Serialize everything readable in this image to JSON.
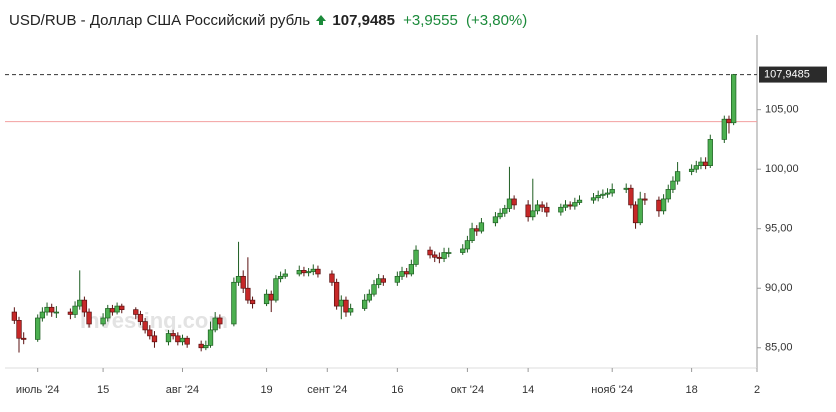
{
  "chart_data": {
    "type": "candlestick",
    "title": "USD/RUB - Доллар США Российский рубль",
    "last_price": {
      "value": 107.9485,
      "label": "107,9485"
    },
    "change": {
      "value": 3.9555,
      "label": "+3,9555"
    },
    "change_percent": {
      "value": 3.8,
      "label": "(+3,80%)"
    },
    "reference_line": 103.993,
    "watermark": "Investing.com",
    "up_color": "#4caf50",
    "down_color": "#c62828",
    "x": [
      "2024-06-26",
      "2024-06-27",
      "2024-06-28",
      "2024-07-01",
      "2024-07-02",
      "2024-07-03",
      "2024-07-04",
      "2024-07-05",
      "2024-07-08",
      "2024-07-09",
      "2024-07-10",
      "2024-07-11",
      "2024-07-12",
      "2024-07-15",
      "2024-07-16",
      "2024-07-17",
      "2024-07-18",
      "2024-07-19",
      "2024-07-22",
      "2024-07-23",
      "2024-07-24",
      "2024-07-25",
      "2024-07-26",
      "2024-07-29",
      "2024-07-30",
      "2024-07-31",
      "2024-08-01",
      "2024-08-02",
      "2024-08-05",
      "2024-08-06",
      "2024-08-07",
      "2024-08-08",
      "2024-08-09",
      "2024-08-12",
      "2024-08-13",
      "2024-08-14",
      "2024-08-15",
      "2024-08-16",
      "2024-08-19",
      "2024-08-20",
      "2024-08-21",
      "2024-08-22",
      "2024-08-23",
      "2024-08-26",
      "2024-08-27",
      "2024-08-28",
      "2024-08-29",
      "2024-08-30",
      "2024-09-02",
      "2024-09-03",
      "2024-09-04",
      "2024-09-05",
      "2024-09-06",
      "2024-09-09",
      "2024-09-10",
      "2024-09-11",
      "2024-09-12",
      "2024-09-13",
      "2024-09-16",
      "2024-09-17",
      "2024-09-18",
      "2024-09-19",
      "2024-09-20",
      "2024-09-23",
      "2024-09-24",
      "2024-09-25",
      "2024-09-26",
      "2024-09-27",
      "2024-09-30",
      "2024-10-01",
      "2024-10-02",
      "2024-10-03",
      "2024-10-04",
      "2024-10-07",
      "2024-10-08",
      "2024-10-09",
      "2024-10-10",
      "2024-10-11",
      "2024-10-14",
      "2024-10-15",
      "2024-10-16",
      "2024-10-17",
      "2024-10-18",
      "2024-10-21",
      "2024-10-22",
      "2024-10-23",
      "2024-10-24",
      "2024-10-25",
      "2024-10-28",
      "2024-10-29",
      "2024-10-30",
      "2024-10-31",
      "2024-11-01",
      "2024-11-04",
      "2024-11-05",
      "2024-11-06",
      "2024-11-07",
      "2024-11-08",
      "2024-11-11",
      "2024-11-12",
      "2024-11-13",
      "2024-11-14",
      "2024-11-15",
      "2024-11-18",
      "2024-11-19",
      "2024-11-20",
      "2024-11-21",
      "2024-11-22",
      "2024-11-25",
      "2024-11-26",
      "2024-11-27"
    ],
    "open": [
      88.0,
      87.3,
      85.8,
      85.7,
      87.5,
      88.0,
      88.4,
      88.0,
      88.0,
      87.8,
      88.5,
      89.0,
      88.0,
      87.0,
      87.5,
      88.3,
      88.0,
      88.5,
      88.2,
      87.8,
      87.2,
      86.5,
      86.0,
      85.5,
      86.2,
      86.0,
      85.5,
      85.8,
      85.3,
      85.0,
      85.2,
      86.5,
      87.5,
      87.0,
      90.5,
      91.0,
      90.0,
      89.0,
      88.7,
      89.5,
      89.0,
      90.8,
      91.0,
      91.2,
      91.5,
      91.3,
      91.4,
      91.6,
      91.2,
      90.5,
      88.5,
      89.0,
      88.0,
      88.3,
      89.0,
      89.5,
      90.3,
      90.8,
      90.5,
      91.0,
      91.4,
      91.2,
      92.0,
      93.2,
      92.8,
      92.6,
      92.5,
      93.0,
      93.0,
      93.3,
      94.0,
      95.0,
      94.8,
      95.5,
      96.0,
      96.3,
      96.7,
      97.5,
      97.0,
      96.0,
      96.5,
      97.0,
      96.8,
      96.4,
      96.8,
      97.0,
      96.9,
      97.2,
      97.4,
      97.6,
      97.8,
      97.9,
      98.0,
      98.3,
      98.4,
      97.0,
      95.5,
      97.5,
      97.4,
      96.5,
      97.5,
      98.3,
      99.0,
      99.8,
      100.0,
      100.3,
      100.6,
      100.3,
      102.5,
      104.2,
      103.9
    ],
    "high": [
      88.4,
      87.6,
      86.3,
      87.8,
      88.4,
      88.8,
      88.7,
      88.5,
      88.3,
      88.9,
      91.5,
      89.3,
      88.3,
      87.9,
      88.6,
      88.6,
      88.8,
      88.7,
      88.4,
      88.1,
      87.5,
      86.9,
      86.4,
      86.5,
      86.5,
      86.3,
      86.1,
      86.0,
      85.6,
      85.6,
      87.2,
      88.0,
      87.8,
      90.9,
      93.9,
      91.5,
      92.6,
      89.3,
      89.9,
      89.8,
      91.1,
      91.4,
      91.6,
      91.9,
      91.8,
      91.7,
      92.0,
      91.9,
      91.5,
      90.8,
      89.4,
      89.3,
      88.7,
      89.5,
      89.9,
      90.7,
      91.2,
      91.1,
      91.4,
      91.8,
      91.7,
      92.4,
      93.6,
      93.5,
      93.1,
      93.0,
      93.4,
      93.4,
      93.7,
      94.4,
      95.5,
      95.3,
      95.9,
      96.4,
      96.7,
      97.0,
      100.2,
      97.8,
      97.4,
      99.2,
      97.4,
      97.3,
      97.2,
      97.1,
      97.4,
      97.3,
      97.6,
      97.8,
      98.0,
      98.2,
      98.3,
      98.4,
      98.8,
      98.8,
      98.7,
      97.3,
      98.1,
      98.0,
      97.7,
      97.9,
      98.7,
      99.4,
      100.6,
      100.4,
      100.7,
      101.0,
      101.0,
      102.9,
      104.5,
      104.5,
      108.0
    ],
    "low": [
      87.0,
      84.6,
      85.3,
      85.5,
      87.2,
      87.7,
      87.6,
      87.5,
      87.4,
      87.5,
      88.2,
      87.6,
      86.7,
      86.8,
      87.2,
      87.7,
      87.8,
      87.9,
      87.4,
      86.9,
      86.2,
      85.7,
      85.0,
      85.2,
      85.7,
      85.2,
      85.2,
      85.0,
      84.7,
      84.8,
      85.0,
      86.3,
      86.6,
      86.8,
      90.2,
      89.6,
      88.7,
      88.3,
      88.5,
      88.0,
      88.8,
      90.5,
      90.8,
      91.0,
      91.0,
      91.0,
      91.1,
      90.9,
      90.2,
      88.2,
      87.4,
      87.6,
      87.7,
      88.1,
      88.8,
      89.3,
      90.0,
      90.2,
      90.2,
      90.7,
      90.9,
      91.0,
      91.8,
      92.5,
      92.2,
      92.1,
      92.2,
      92.6,
      92.8,
      93.0,
      93.8,
      94.4,
      94.6,
      95.2,
      95.8,
      96.0,
      96.4,
      96.6,
      95.6,
      95.7,
      96.2,
      96.4,
      96.0,
      96.1,
      96.5,
      96.6,
      96.6,
      97.0,
      97.1,
      97.3,
      97.5,
      97.6,
      97.7,
      98.0,
      96.7,
      95.0,
      95.3,
      97.0,
      96.0,
      96.2,
      97.2,
      98.0,
      98.7,
      99.5,
      99.7,
      100.0,
      100.0,
      100.1,
      102.2,
      103.0,
      103.7
    ],
    "close": [
      87.3,
      85.8,
      85.7,
      87.5,
      88.0,
      88.4,
      88.0,
      88.0,
      87.8,
      88.5,
      89.0,
      88.0,
      87.0,
      87.5,
      88.3,
      88.0,
      88.5,
      88.2,
      87.8,
      87.2,
      86.5,
      86.0,
      85.5,
      86.2,
      86.0,
      85.5,
      85.8,
      85.3,
      85.0,
      85.2,
      86.5,
      87.5,
      87.0,
      90.5,
      91.0,
      90.0,
      89.0,
      88.7,
      89.5,
      89.0,
      90.8,
      91.0,
      91.2,
      91.5,
      91.3,
      91.4,
      91.6,
      91.2,
      90.5,
      88.5,
      89.0,
      88.0,
      88.3,
      89.0,
      89.5,
      90.3,
      90.8,
      90.5,
      91.0,
      91.4,
      91.2,
      92.0,
      93.2,
      92.8,
      92.6,
      92.5,
      93.0,
      93.0,
      93.3,
      94.0,
      95.0,
      94.8,
      95.5,
      96.0,
      96.3,
      96.7,
      97.5,
      97.0,
      96.0,
      96.5,
      97.0,
      96.8,
      96.4,
      96.8,
      97.0,
      96.9,
      97.2,
      97.4,
      97.6,
      97.8,
      97.9,
      98.0,
      98.3,
      98.4,
      97.0,
      95.5,
      97.5,
      97.4,
      96.5,
      97.5,
      98.3,
      99.0,
      99.8,
      100.0,
      100.3,
      100.6,
      100.3,
      102.5,
      104.2,
      103.9,
      107.9485
    ],
    "xlim": [
      "2024-06-24",
      "2024-12-02"
    ],
    "xticks": [
      {
        "value": "2024-07-01",
        "label": "июль '24"
      },
      {
        "value": "2024-07-15",
        "label": "15"
      },
      {
        "value": "2024-08-01",
        "label": "авг '24"
      },
      {
        "value": "2024-08-19",
        "label": "19"
      },
      {
        "value": "2024-09-01",
        "label": "сент '24"
      },
      {
        "value": "2024-09-16",
        "label": "16"
      },
      {
        "value": "2024-10-01",
        "label": "окт '24"
      },
      {
        "value": "2024-10-14",
        "label": "14"
      },
      {
        "value": "2024-11-01",
        "label": "нояб '24"
      },
      {
        "value": "2024-11-18",
        "label": "18"
      },
      {
        "value": "2024-12-02",
        "label": "2"
      }
    ],
    "ylim": [
      83.3,
      110.6
    ],
    "yticks": [
      {
        "value": 85,
        "label": "85,00"
      },
      {
        "value": 90,
        "label": "90,00"
      },
      {
        "value": 95,
        "label": "95,00"
      },
      {
        "value": 100,
        "label": "100,00"
      },
      {
        "value": 105,
        "label": "105,00"
      }
    ]
  }
}
